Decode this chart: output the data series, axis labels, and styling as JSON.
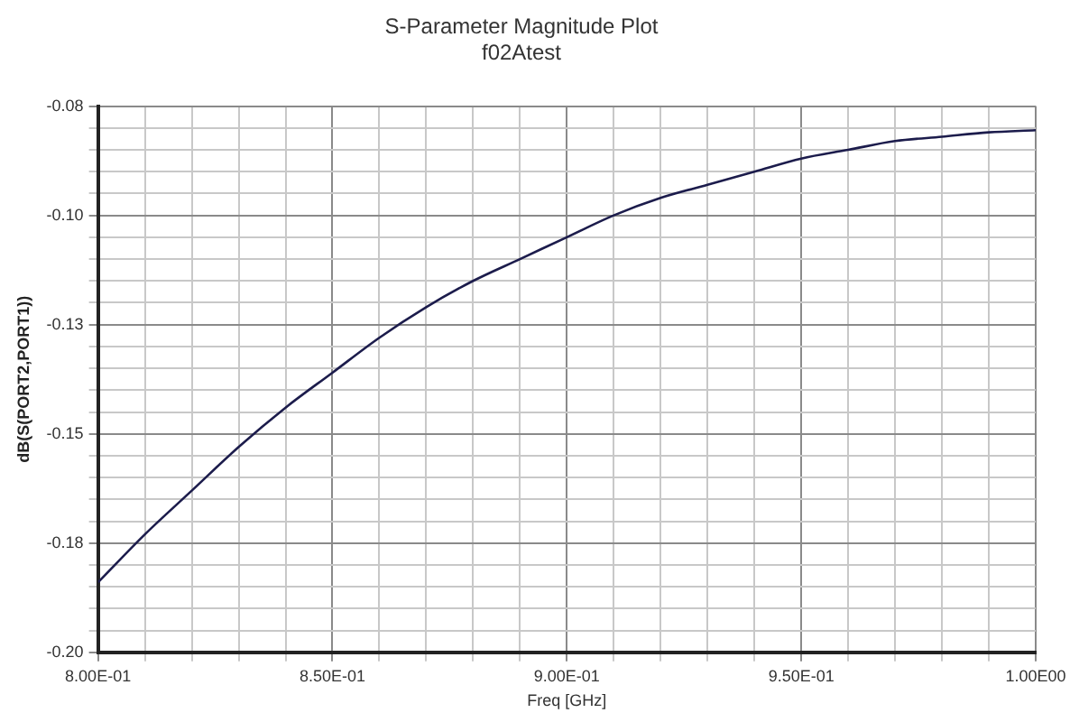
{
  "chart_data": {
    "type": "line",
    "title": "S-Parameter Magnitude Plot",
    "subtitle": "f02Atest",
    "xlabel": "Freq [GHz]",
    "ylabel": "dB(S(PORT2,PORT1))",
    "x": [
      0.8,
      0.81,
      0.82,
      0.83,
      0.84,
      0.85,
      0.86,
      0.87,
      0.88,
      0.89,
      0.9,
      0.91,
      0.92,
      0.93,
      0.94,
      0.95,
      0.96,
      0.97,
      0.98,
      0.99,
      1.0
    ],
    "series": [
      {
        "color": "#1c1c4c",
        "values": [
          -0.184,
          -0.173,
          -0.163,
          -0.153,
          -0.144,
          -0.136,
          -0.128,
          -0.121,
          -0.115,
          -0.11,
          -0.105,
          -0.1,
          -0.096,
          -0.093,
          -0.09,
          -0.087,
          -0.085,
          -0.083,
          -0.082,
          -0.081,
          -0.0805
        ]
      }
    ],
    "xlim": [
      0.8,
      1.0
    ],
    "xticks": [
      {
        "value": 0.8,
        "label": "8.00E-01"
      },
      {
        "value": 0.81,
        "label": null
      },
      {
        "value": 0.82,
        "label": null
      },
      {
        "value": 0.83,
        "label": null
      },
      {
        "value": 0.84,
        "label": null
      },
      {
        "value": 0.85,
        "label": "8.50E-01"
      },
      {
        "value": 0.86,
        "label": null
      },
      {
        "value": 0.87,
        "label": null
      },
      {
        "value": 0.88,
        "label": null
      },
      {
        "value": 0.89,
        "label": null
      },
      {
        "value": 0.9,
        "label": "9.00E-01"
      },
      {
        "value": 0.91,
        "label": null
      },
      {
        "value": 0.92,
        "label": null
      },
      {
        "value": 0.93,
        "label": null
      },
      {
        "value": 0.94,
        "label": null
      },
      {
        "value": 0.95,
        "label": "9.50E-01"
      },
      {
        "value": 0.96,
        "label": null
      },
      {
        "value": 0.97,
        "label": null
      },
      {
        "value": 0.98,
        "label": null
      },
      {
        "value": 0.99,
        "label": null
      },
      {
        "value": 1.0,
        "label": "1.00E00"
      }
    ],
    "ylim": [
      -0.2,
      -0.075
    ],
    "yticks": [
      {
        "value": -0.2,
        "label": "-0.20"
      },
      {
        "value": -0.195,
        "label": null
      },
      {
        "value": -0.19,
        "label": null
      },
      {
        "value": -0.185,
        "label": null
      },
      {
        "value": -0.18,
        "label": null
      },
      {
        "value": -0.175,
        "label": "-0.18"
      },
      {
        "value": -0.17,
        "label": null
      },
      {
        "value": -0.165,
        "label": null
      },
      {
        "value": -0.16,
        "label": null
      },
      {
        "value": -0.155,
        "label": null
      },
      {
        "value": -0.15,
        "label": "-0.15"
      },
      {
        "value": -0.145,
        "label": null
      },
      {
        "value": -0.14,
        "label": null
      },
      {
        "value": -0.135,
        "label": null
      },
      {
        "value": -0.13,
        "label": null
      },
      {
        "value": -0.125,
        "label": "-0.13"
      },
      {
        "value": -0.12,
        "label": null
      },
      {
        "value": -0.115,
        "label": null
      },
      {
        "value": -0.11,
        "label": null
      },
      {
        "value": -0.105,
        "label": null
      },
      {
        "value": -0.1,
        "label": "-0.10"
      },
      {
        "value": -0.095,
        "label": null
      },
      {
        "value": -0.09,
        "label": null
      },
      {
        "value": -0.085,
        "label": null
      },
      {
        "value": -0.08,
        "label": null
      },
      {
        "value": -0.075,
        "label": "-0.08"
      }
    ],
    "grid": true,
    "legend": false,
    "marker": "none",
    "line_style": "solid"
  }
}
